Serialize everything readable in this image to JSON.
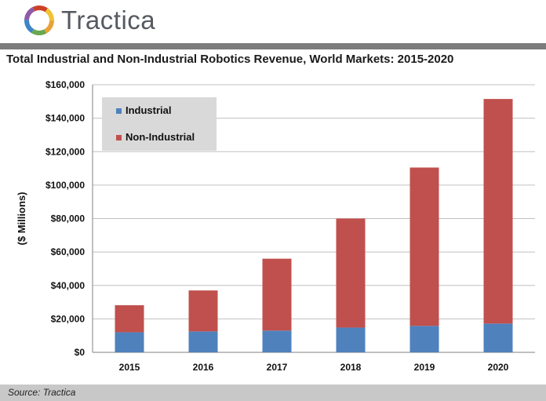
{
  "brand": {
    "name": "Tractica"
  },
  "colors": {
    "industrial": "#4f81bd",
    "non_industrial": "#c0504d",
    "legend_bg": "#d9d9d9",
    "gridline": "#c0c0c0",
    "topbar": "#7c7c7c",
    "footer_bg": "#c8c8c8"
  },
  "footer": {
    "source": "Source: Tractica"
  },
  "chart_data": {
    "type": "bar",
    "stacked": true,
    "title": "Total Industrial and Non-Industrial Robotics Revenue, World Markets: 2015-2020",
    "xlabel": "",
    "ylabel": "($ Millions)",
    "categories": [
      "2015",
      "2016",
      "2017",
      "2018",
      "2019",
      "2020"
    ],
    "series": [
      {
        "name": "Industrial",
        "values": [
          12000,
          12500,
          13000,
          14800,
          15800,
          17200
        ]
      },
      {
        "name": "Non-Industrial",
        "values": [
          16200,
          24500,
          43000,
          65200,
          94700,
          134300
        ]
      }
    ],
    "ylim": [
      0,
      160000
    ],
    "yticks": [
      "$0",
      "$20,000",
      "$40,000",
      "$60,000",
      "$80,000",
      "$100,000",
      "$120,000",
      "$140,000",
      "$160,000"
    ],
    "grid": true,
    "legend_position": "top-left"
  }
}
